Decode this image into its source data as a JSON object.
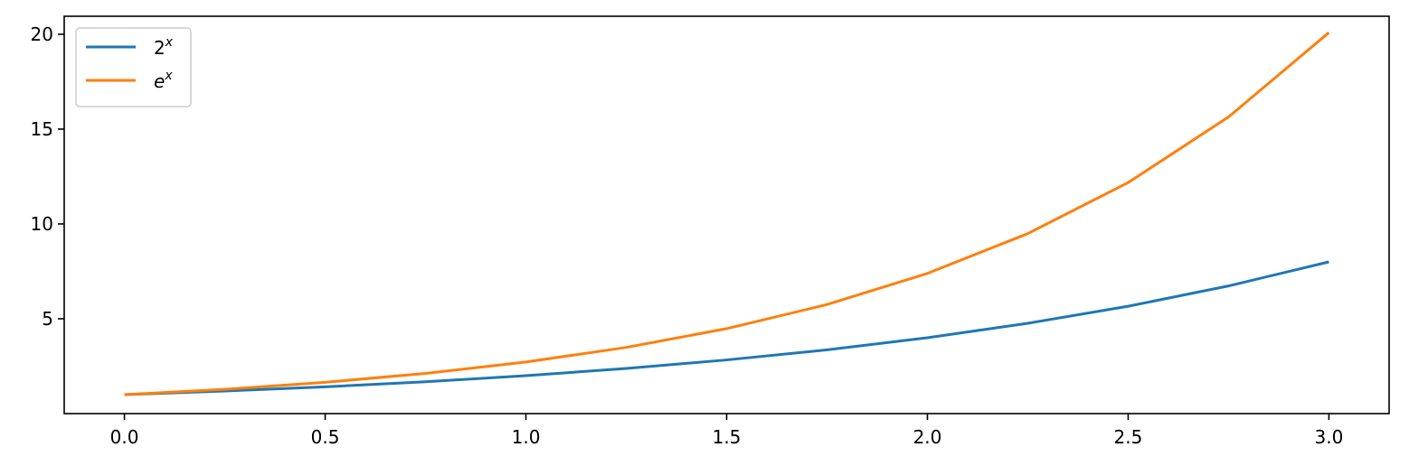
{
  "chart_data": {
    "type": "line",
    "title": "",
    "xlabel": "",
    "ylabel": "",
    "xlim": [
      -0.15,
      3.15
    ],
    "ylim": [
      0.0,
      20.95
    ],
    "x_ticks": [
      0.0,
      0.5,
      1.0,
      1.5,
      2.0,
      2.5,
      3.0
    ],
    "x_tick_labels": [
      "0.0",
      "0.5",
      "1.0",
      "1.5",
      "2.0",
      "2.5",
      "3.0"
    ],
    "y_ticks": [
      5,
      10,
      15,
      20
    ],
    "y_tick_labels": [
      "5",
      "10",
      "15",
      "20"
    ],
    "grid": false,
    "legend_position": "top-left",
    "series": [
      {
        "name_base": "2",
        "name_sup": "x",
        "color": "#1f77b4",
        "x": [
          0.0,
          0.25,
          0.5,
          0.75,
          1.0,
          1.25,
          1.5,
          1.75,
          2.0,
          2.25,
          2.5,
          2.75,
          3.0
        ],
        "y": [
          1.0,
          1.19,
          1.41,
          1.68,
          2.0,
          2.38,
          2.83,
          3.36,
          4.0,
          4.76,
          5.66,
          6.73,
          8.0
        ]
      },
      {
        "name_base": "e",
        "name_sup": "x",
        "color": "#ff7f0e",
        "x": [
          0.0,
          0.25,
          0.5,
          0.75,
          1.0,
          1.25,
          1.5,
          1.75,
          2.0,
          2.25,
          2.5,
          2.75,
          3.0
        ],
        "y": [
          1.0,
          1.28,
          1.65,
          2.12,
          2.72,
          3.49,
          4.48,
          5.75,
          7.39,
          9.49,
          12.18,
          15.64,
          20.09
        ]
      }
    ]
  }
}
